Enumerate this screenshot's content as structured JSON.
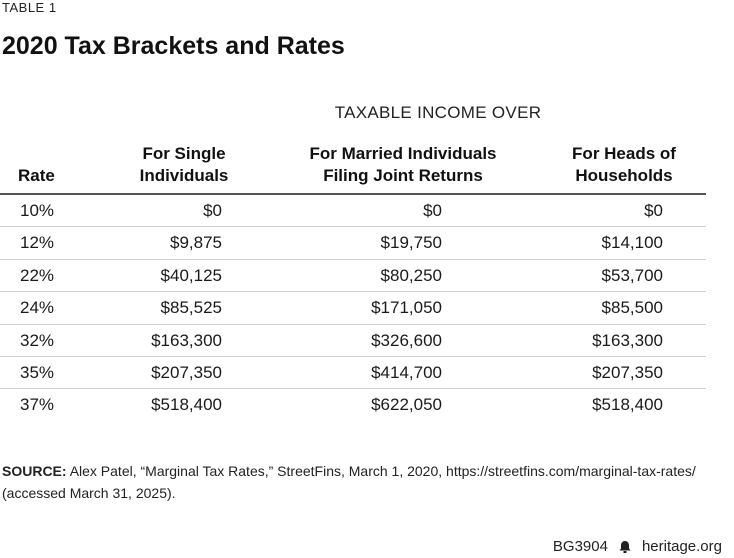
{
  "table_label": "TABLE 1",
  "title": "2020 Tax Brackets and Rates",
  "group_header": "TAXABLE INCOME OVER",
  "columns": {
    "rate": "Rate",
    "single_line1": "For Single",
    "single_line2": "Individuals",
    "married_line1": "For Married Individuals",
    "married_line2": "Filing Joint Returns",
    "heads_line1": "For Heads of",
    "heads_line2": "Households"
  },
  "rows": [
    {
      "rate": "10%",
      "single": "$0",
      "married": "$0",
      "heads": "$0"
    },
    {
      "rate": "12%",
      "single": "$9,875",
      "married": "$19,750",
      "heads": "$14,100"
    },
    {
      "rate": "22%",
      "single": "$40,125",
      "married": "$80,250",
      "heads": "$53,700"
    },
    {
      "rate": "24%",
      "single": "$85,525",
      "married": "$171,050",
      "heads": "$85,500"
    },
    {
      "rate": "32%",
      "single": "$163,300",
      "married": "$326,600",
      "heads": "$163,300"
    },
    {
      "rate": "35%",
      "single": "$207,350",
      "married": "$414,700",
      "heads": "$207,350"
    },
    {
      "rate": "37%",
      "single": "$518,400",
      "married": "$622,050",
      "heads": "$518,400"
    }
  ],
  "source": {
    "label": "SOURCE:",
    "text": "Alex Patel, “Marginal Tax Rates,” StreetFins, March 1, 2020, https://streetfins.com/marginal-tax-rates/ (accessed March 31, 2025)."
  },
  "footer": {
    "code": "BG3904",
    "site": "heritage.org",
    "icon": "bell-icon"
  }
}
